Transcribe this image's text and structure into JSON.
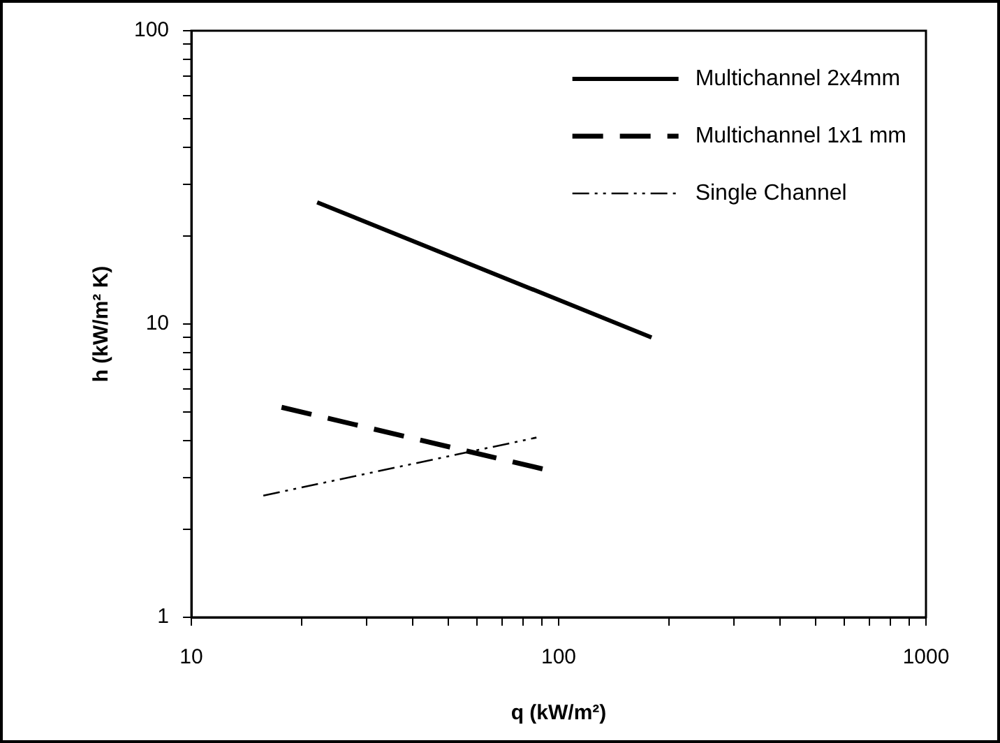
{
  "chart_data": {
    "type": "line",
    "xlabel": "q (kW/m²)",
    "ylabel": "h (kW/m² K)",
    "log": "xy",
    "legend": "top right",
    "grid": false,
    "marker": "none",
    "xlim": [
      10,
      1000
    ],
    "ylim": [
      1,
      100
    ],
    "xticks": [
      10,
      {
        "value": 20,
        "label": null
      },
      {
        "value": 30,
        "label": null
      },
      {
        "value": 40,
        "label": null
      },
      {
        "value": 50,
        "label": null
      },
      {
        "value": 60,
        "label": null
      },
      {
        "value": 70,
        "label": null
      },
      {
        "value": 80,
        "label": null
      },
      {
        "value": 90,
        "label": null
      },
      100,
      {
        "value": 200,
        "label": null
      },
      {
        "value": 300,
        "label": null
      },
      {
        "value": 400,
        "label": null
      },
      {
        "value": 500,
        "label": null
      },
      {
        "value": 600,
        "label": null
      },
      {
        "value": 700,
        "label": null
      },
      {
        "value": 800,
        "label": null
      },
      {
        "value": 900,
        "label": null
      },
      1000
    ],
    "yticks": [
      1,
      {
        "value": 2,
        "label": null
      },
      {
        "value": 3,
        "label": null
      },
      {
        "value": 4,
        "label": null
      },
      {
        "value": 5,
        "label": null
      },
      {
        "value": 6,
        "label": null
      },
      {
        "value": 7,
        "label": null
      },
      {
        "value": 8,
        "label": null
      },
      {
        "value": 9,
        "label": null
      },
      10,
      {
        "value": 20,
        "label": null
      },
      {
        "value": 30,
        "label": null
      },
      {
        "value": 40,
        "label": null
      },
      {
        "value": 50,
        "label": null
      },
      {
        "value": 60,
        "label": null
      },
      {
        "value": 70,
        "label": null
      },
      {
        "value": 80,
        "label": null
      },
      {
        "value": 90,
        "label": null
      },
      100
    ],
    "series": [
      {
        "name": "Multichannel 2x4mm",
        "color": "#000000",
        "line_style": "solid",
        "x": [
          22,
          179
        ],
        "values": [
          26,
          9
        ]
      },
      {
        "name": "Multichannel 1x1 mm",
        "color": "#000000",
        "line_style": "dashed",
        "x": [
          17.6,
          91
        ],
        "values": [
          5.2,
          3.2
        ]
      },
      {
        "name": "Single Channel",
        "color": "#000000",
        "line_style": "dotted",
        "x": [
          15.7,
          87
        ],
        "values": [
          2.6,
          4.1
        ]
      }
    ]
  }
}
